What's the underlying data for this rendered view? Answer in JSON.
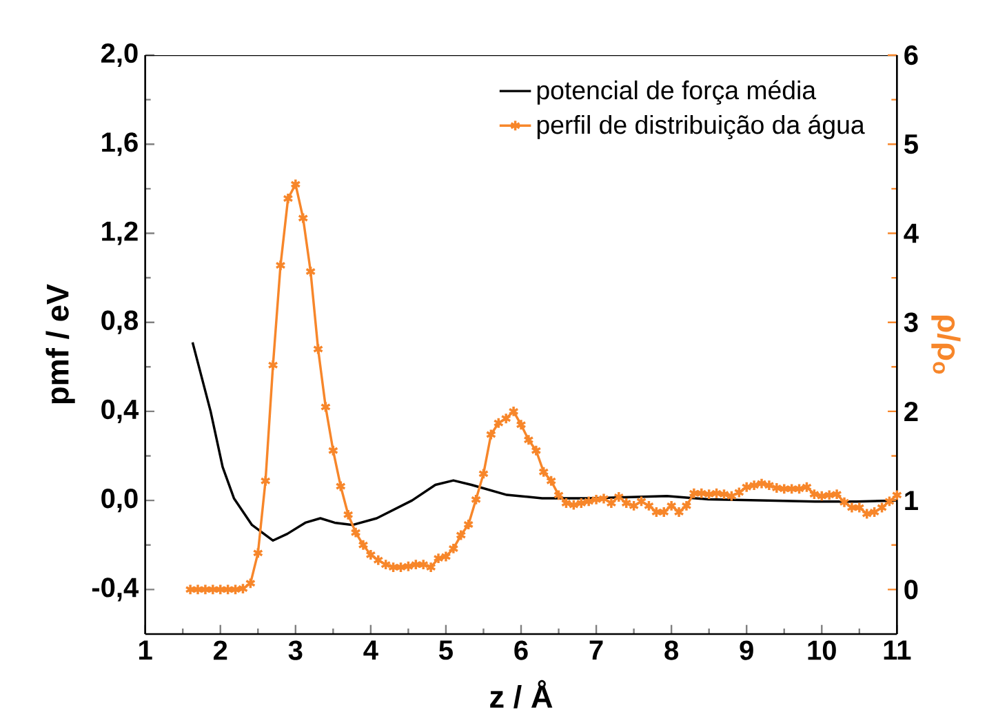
{
  "chart_data": {
    "type": "line",
    "xlabel": "**z** / Å",
    "ylabel": "pmf / eV",
    "y2label": "ρ/ρ$_{o}$",
    "xlim": [
      1,
      11
    ],
    "xticks": [
      1,
      2,
      3,
      4,
      5,
      6,
      7,
      8,
      9,
      10,
      11
    ],
    "ylim": [
      -0.6,
      2.0
    ],
    "yticks": [
      {
        "value": -0.4,
        "label": "-0,4"
      },
      {
        "value": 0.0,
        "label": "0,0"
      },
      {
        "value": 0.4,
        "label": "0,4"
      },
      {
        "value": 0.8,
        "label": "0,8"
      },
      {
        "value": 1.2,
        "label": "1,2"
      },
      {
        "value": 1.6,
        "label": "1,6"
      },
      {
        "value": 2.0,
        "label": "2,0"
      }
    ],
    "y2lim": [
      -0.5,
      6
    ],
    "y2ticks": [
      0,
      1,
      2,
      3,
      4,
      5,
      6
    ],
    "legend": "top right",
    "grid": false,
    "line_style": "solid",
    "series": [
      {
        "name": "potencial de força média",
        "color": "#000000",
        "marker": "none",
        "x": [
          1.63,
          1.87,
          2.03,
          2.18,
          2.42,
          2.7,
          2.89,
          3.13,
          3.33,
          3.52,
          3.76,
          4.08,
          4.55,
          4.86,
          5.1,
          5.34,
          5.81,
          6.28,
          6.91,
          7.94,
          8.49,
          9.28,
          9.91,
          10.46,
          11.0
        ],
        "values": [
          0.71,
          0.4,
          0.15,
          0.01,
          -0.11,
          -0.18,
          -0.15,
          -0.1,
          -0.08,
          -0.1,
          -0.11,
          -0.08,
          0.0,
          0.07,
          0.09,
          0.07,
          0.025,
          0.01,
          0.01,
          0.02,
          0.005,
          0.0,
          -0.005,
          -0.005,
          0.0
        ]
      },
      {
        "name": "perfil de distribuição da água",
        "color": "#f7862a",
        "marker": "cross",
        "axis": "y2",
        "x": [
          1.6,
          1.7,
          1.8,
          1.9,
          2.0,
          2.1,
          2.2,
          2.3,
          2.4,
          2.5,
          2.6,
          2.7,
          2.8,
          2.9,
          3.0,
          3.1,
          3.2,
          3.3,
          3.4,
          3.5,
          3.6,
          3.7,
          3.8,
          3.9,
          4.0,
          4.1,
          4.2,
          4.3,
          4.4,
          4.5,
          4.6,
          4.7,
          4.8,
          4.9,
          5.0,
          5.1,
          5.2,
          5.3,
          5.4,
          5.5,
          5.6,
          5.7,
          5.8,
          5.9,
          6.0,
          6.1,
          6.2,
          6.3,
          6.4,
          6.5,
          6.6,
          6.7,
          6.8,
          6.9,
          7.0,
          7.1,
          7.2,
          7.3,
          7.4,
          7.5,
          7.6,
          7.7,
          7.8,
          7.9,
          8.0,
          8.1,
          8.2,
          8.3,
          8.4,
          8.5,
          8.6,
          8.7,
          8.8,
          8.9,
          9.0,
          9.1,
          9.2,
          9.3,
          9.4,
          9.5,
          9.6,
          9.7,
          9.8,
          9.9,
          10.0,
          10.1,
          10.2,
          10.3,
          10.4,
          10.5,
          10.6,
          10.7,
          10.8,
          10.9,
          11.0
        ],
        "values": [
          0,
          0,
          0,
          0,
          0,
          0,
          0,
          0.01,
          0.07,
          0.41,
          1.22,
          2.52,
          3.64,
          4.39,
          4.55,
          4.17,
          3.57,
          2.7,
          2.05,
          1.56,
          1.16,
          0.84,
          0.64,
          0.5,
          0.39,
          0.33,
          0.28,
          0.25,
          0.25,
          0.26,
          0.28,
          0.28,
          0.25,
          0.35,
          0.37,
          0.46,
          0.61,
          0.73,
          1.01,
          1.3,
          1.74,
          1.87,
          1.92,
          2.0,
          1.85,
          1.68,
          1.56,
          1.32,
          1.22,
          1.06,
          0.97,
          0.95,
          0.97,
          0.99,
          1.01,
          1.02,
          0.97,
          1.04,
          0.97,
          0.94,
          0.99,
          0.94,
          0.87,
          0.87,
          0.94,
          0.87,
          0.94,
          1.08,
          1.08,
          1.07,
          1.08,
          1.07,
          1.05,
          1.09,
          1.15,
          1.17,
          1.19,
          1.17,
          1.14,
          1.13,
          1.13,
          1.13,
          1.15,
          1.07,
          1.05,
          1.06,
          1.07,
          0.98,
          0.92,
          0.92,
          0.85,
          0.87,
          0.92,
          0.99,
          1.06
        ]
      }
    ]
  }
}
